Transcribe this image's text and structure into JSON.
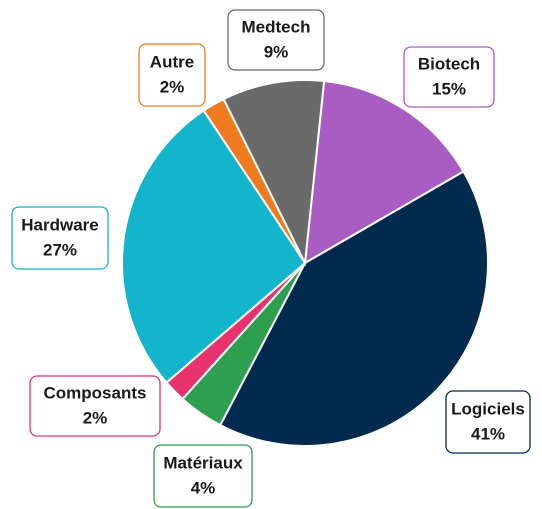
{
  "chart_data": {
    "type": "pie",
    "categories": [
      "Biotech",
      "Logiciels",
      "Matériaux",
      "Composants",
      "Hardware",
      "Autre",
      "Medtech"
    ],
    "values": [
      15,
      41,
      4,
      2,
      27,
      2,
      9
    ],
    "value_labels": [
      "15%",
      "41%",
      "4%",
      "2%",
      "27%",
      "2%",
      "9%"
    ],
    "colors": [
      "#a95cc2",
      "#002b4f",
      "#2e9e4f",
      "#e8336e",
      "#12b5cc",
      "#f07b1e",
      "#6a6a6a"
    ]
  }
}
